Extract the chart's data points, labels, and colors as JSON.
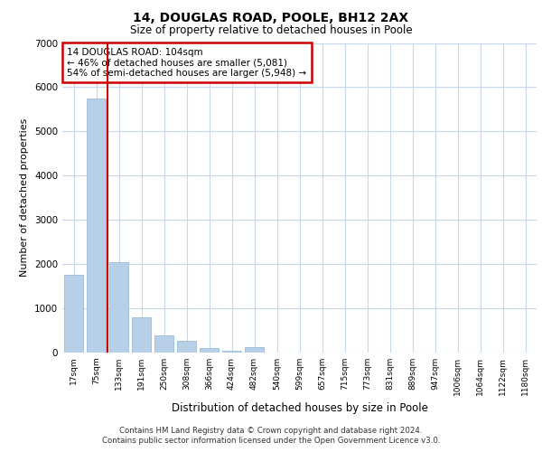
{
  "title1": "14, DOUGLAS ROAD, POOLE, BH12 2AX",
  "title2": "Size of property relative to detached houses in Poole",
  "xlabel": "Distribution of detached houses by size in Poole",
  "ylabel": "Number of detached properties",
  "annotation_line1": "14 DOUGLAS ROAD: 104sqm",
  "annotation_line2": "← 46% of detached houses are smaller (5,081)",
  "annotation_line3": "54% of semi-detached houses are larger (5,948) →",
  "bar_color": "#b8cfe8",
  "bar_edge_color": "#8ab4d8",
  "vline_color": "#cc0000",
  "annotation_box_edge": "#cc0000",
  "background_color": "#ffffff",
  "grid_color": "#c8d8ea",
  "categories": [
    "17sqm",
    "75sqm",
    "133sqm",
    "191sqm",
    "250sqm",
    "308sqm",
    "366sqm",
    "424sqm",
    "482sqm",
    "540sqm",
    "599sqm",
    "657sqm",
    "715sqm",
    "773sqm",
    "831sqm",
    "889sqm",
    "947sqm",
    "1006sqm",
    "1064sqm",
    "1122sqm",
    "1180sqm"
  ],
  "values": [
    1750,
    5750,
    2050,
    800,
    380,
    260,
    100,
    45,
    130,
    10,
    10,
    10,
    0,
    0,
    0,
    0,
    0,
    0,
    0,
    0,
    0
  ],
  "ylim": [
    0,
    7000
  ],
  "yticks": [
    0,
    1000,
    2000,
    3000,
    4000,
    5000,
    6000,
    7000
  ],
  "vline_x_index": 1.5,
  "footer1": "Contains HM Land Registry data © Crown copyright and database right 2024.",
  "footer2": "Contains public sector information licensed under the Open Government Licence v3.0."
}
